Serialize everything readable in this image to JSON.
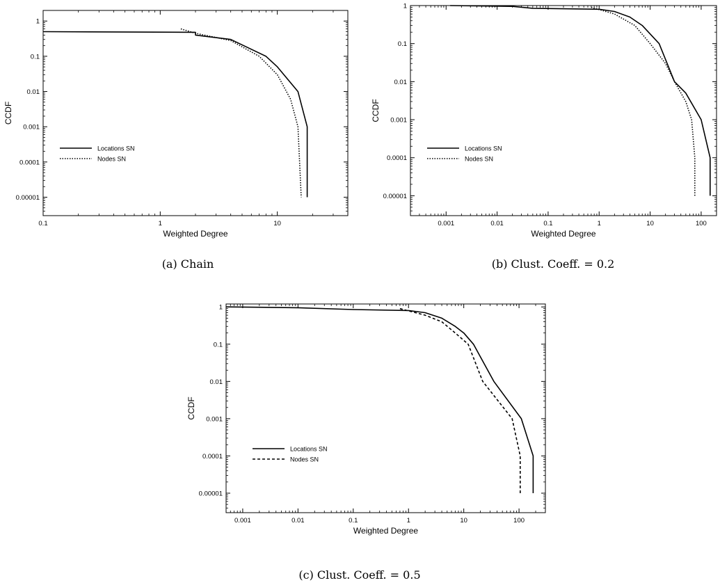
{
  "chart_data": [
    {
      "id": "a",
      "type": "line",
      "caption": "(a) Chain",
      "xlabel": "Weighted Degree",
      "ylabel": "CCDF",
      "xscale": "log",
      "yscale": "log",
      "xlim": [
        0.1,
        40
      ],
      "ylim": [
        3e-06,
        2
      ],
      "xticks": [
        0.1,
        1,
        10
      ],
      "xtick_labels": [
        "0.1",
        "1",
        "10"
      ],
      "yticks": [
        1,
        0.1,
        0.01,
        0.001,
        0.0001,
        1e-05
      ],
      "ytick_labels": [
        "1",
        "0.1",
        "0.01",
        "0.001",
        "0.0001",
        "0.00001"
      ],
      "legend_position": "lower-left",
      "series": [
        {
          "name": "Locations SN",
          "style": "solid",
          "points": [
            [
              0.1,
              0.5
            ],
            [
              2,
              0.48
            ],
            [
              2,
              0.4
            ],
            [
              4,
              0.3
            ],
            [
              8,
              0.1
            ],
            [
              10,
              0.05
            ],
            [
              15,
              0.01
            ],
            [
              18,
              0.001
            ],
            [
              18,
              1e-05
            ]
          ]
        },
        {
          "name": "Nodes SN",
          "style": "dotted",
          "points": [
            [
              1.5,
              0.6
            ],
            [
              2,
              0.45
            ],
            [
              4,
              0.28
            ],
            [
              7,
              0.1
            ],
            [
              10,
              0.03
            ],
            [
              13,
              0.006
            ],
            [
              15,
              0.001
            ],
            [
              16,
              1e-05
            ]
          ]
        }
      ]
    },
    {
      "id": "b",
      "type": "line",
      "caption": "(b) Clust. Coeff. = 0.2",
      "xlabel": "Weighted Degree",
      "ylabel": "CCDF",
      "xscale": "log",
      "yscale": "log",
      "xlim": [
        0.0002,
        200
      ],
      "ylim": [
        3e-06,
        1
      ],
      "xticks": [
        0.001,
        0.01,
        0.1,
        1,
        10,
        100
      ],
      "xtick_labels": [
        "0.001",
        "0.01",
        "0.1",
        "1",
        "10",
        "100"
      ],
      "yticks": [
        1,
        0.1,
        0.01,
        0.001,
        0.0001,
        1e-05
      ],
      "ytick_labels": [
        "1",
        "0.1",
        "0.01",
        "0.001",
        "0.0001",
        "0.00001"
      ],
      "legend_position": "lower-left",
      "series": [
        {
          "name": "Locations SN",
          "style": "solid",
          "points": [
            [
              0.0012,
              1
            ],
            [
              0.02,
              0.95
            ],
            [
              0.05,
              0.85
            ],
            [
              1,
              0.8
            ],
            [
              2,
              0.7
            ],
            [
              4,
              0.5
            ],
            [
              7,
              0.3
            ],
            [
              15,
              0.1
            ],
            [
              30,
              0.01
            ],
            [
              50,
              0.005
            ],
            [
              100,
              0.001
            ],
            [
              150,
              0.0001
            ],
            [
              150,
              1e-05
            ]
          ]
        },
        {
          "name": "Nodes SN",
          "style": "dotted",
          "points": [
            [
              0.7,
              0.9
            ],
            [
              2,
              0.6
            ],
            [
              5,
              0.3
            ],
            [
              10,
              0.1
            ],
            [
              20,
              0.03
            ],
            [
              30,
              0.01
            ],
            [
              50,
              0.003
            ],
            [
              65,
              0.001
            ],
            [
              75,
              0.0001
            ],
            [
              75,
              1e-05
            ]
          ]
        }
      ]
    },
    {
      "id": "c",
      "type": "line",
      "caption": "(c) Clust. Coeff. = 0.5",
      "xlabel": "Weighted Degree",
      "ylabel": "CCDF",
      "xscale": "log",
      "yscale": "log",
      "xlim": [
        0.0005,
        300
      ],
      "ylim": [
        3e-06,
        1.2
      ],
      "xticks": [
        0.001,
        0.01,
        0.1,
        1,
        10,
        100
      ],
      "xtick_labels": [
        "0.001",
        "0.01",
        "0.1",
        "1",
        "10",
        "100"
      ],
      "yticks": [
        1,
        0.1,
        0.01,
        0.001,
        0.0001,
        1e-05
      ],
      "ytick_labels": [
        "1",
        "0.1",
        "0.01",
        "0.001",
        "0.0001",
        "0.00001"
      ],
      "legend_position": "lower-left",
      "series": [
        {
          "name": "Locations SN",
          "style": "solid",
          "points": [
            [
              0.0005,
              1
            ],
            [
              0.01,
              0.95
            ],
            [
              0.1,
              0.85
            ],
            [
              1,
              0.8
            ],
            [
              2,
              0.7
            ],
            [
              4,
              0.5
            ],
            [
              7,
              0.3
            ],
            [
              10,
              0.2
            ],
            [
              15,
              0.1
            ],
            [
              35,
              0.01
            ],
            [
              110,
              0.001
            ],
            [
              180,
              0.0001
            ],
            [
              180,
              1e-05
            ]
          ]
        },
        {
          "name": "Nodes SN",
          "style": "dashed",
          "points": [
            [
              0.7,
              0.9
            ],
            [
              2,
              0.6
            ],
            [
              4,
              0.4
            ],
            [
              7,
              0.2
            ],
            [
              12,
              0.1
            ],
            [
              22,
              0.01
            ],
            [
              75,
              0.001
            ],
            [
              105,
              0.0001
            ],
            [
              105,
              1e-05
            ]
          ]
        }
      ]
    }
  ]
}
